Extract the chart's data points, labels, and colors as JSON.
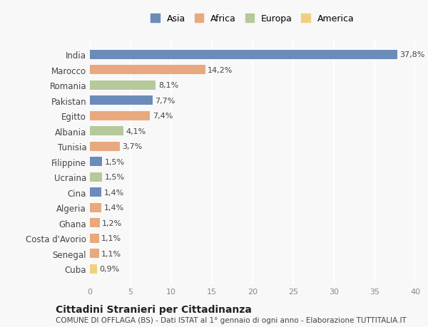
{
  "countries": [
    "India",
    "Marocco",
    "Romania",
    "Pakistan",
    "Egitto",
    "Albania",
    "Tunisia",
    "Filippine",
    "Ucraina",
    "Cina",
    "Algeria",
    "Ghana",
    "Costa d'Avorio",
    "Senegal",
    "Cuba"
  ],
  "values": [
    37.8,
    14.2,
    8.1,
    7.7,
    7.4,
    4.1,
    3.7,
    1.5,
    1.5,
    1.4,
    1.4,
    1.2,
    1.1,
    1.1,
    0.9
  ],
  "labels": [
    "37,8%",
    "14,2%",
    "8,1%",
    "7,7%",
    "7,4%",
    "4,1%",
    "3,7%",
    "1,5%",
    "1,5%",
    "1,4%",
    "1,4%",
    "1,2%",
    "1,1%",
    "1,1%",
    "0,9%"
  ],
  "continents": [
    "Asia",
    "Africa",
    "Europa",
    "Asia",
    "Africa",
    "Europa",
    "Africa",
    "Asia",
    "Europa",
    "Asia",
    "Africa",
    "Africa",
    "Africa",
    "Africa",
    "America"
  ],
  "colors": {
    "Asia": "#6b8cba",
    "Africa": "#e8a97e",
    "Europa": "#b5c99a",
    "America": "#f0d080"
  },
  "legend_order": [
    "Asia",
    "Africa",
    "Europa",
    "America"
  ],
  "xlim": [
    0,
    40
  ],
  "xticks": [
    0,
    5,
    10,
    15,
    20,
    25,
    30,
    35,
    40
  ],
  "title": "Cittadini Stranieri per Cittadinanza",
  "subtitle": "COMUNE DI OFFLAGA (BS) - Dati ISTAT al 1° gennaio di ogni anno - Elaborazione TUTTITALIA.IT",
  "background_color": "#f8f8f8",
  "grid_color": "#ffffff",
  "bar_height": 0.6
}
